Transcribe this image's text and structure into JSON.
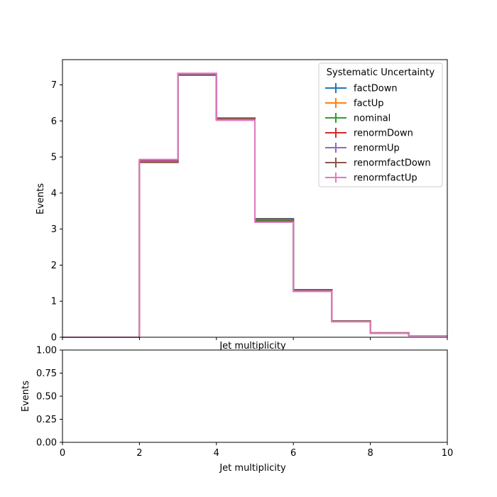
{
  "chart_data": [
    {
      "type": "step",
      "xlabel": "Jet multiplicity",
      "ylabel": "Events",
      "xlim": [
        0,
        10
      ],
      "ylim": [
        0,
        7.7
      ],
      "yticks": [
        "0",
        "1",
        "2",
        "3",
        "4",
        "5",
        "6",
        "7"
      ],
      "legend": {
        "title": "Systematic Uncertainty",
        "placement": "upper right"
      },
      "bin_edges": [
        0,
        1,
        2,
        3,
        4,
        5,
        6,
        7,
        8,
        9,
        10
      ],
      "series": [
        {
          "name": "factDown",
          "color": "#1f77b4",
          "values": [
            0,
            0,
            4.86,
            7.28,
            6.08,
            3.29,
            1.32,
            0.45,
            0.12,
            0.04
          ]
        },
        {
          "name": "factUp",
          "color": "#ff7f0e",
          "values": [
            0,
            0,
            4.92,
            7.31,
            6.02,
            3.2,
            1.28,
            0.43,
            0.11,
            0.04
          ]
        },
        {
          "name": "nominal",
          "color": "#2ca02c",
          "values": [
            0,
            0,
            4.89,
            7.29,
            6.05,
            3.25,
            1.3,
            0.44,
            0.115,
            0.04
          ]
        },
        {
          "name": "renormDown",
          "color": "#d62728",
          "values": [
            0,
            0,
            4.9,
            7.3,
            6.03,
            3.21,
            1.29,
            0.44,
            0.11,
            0.04
          ]
        },
        {
          "name": "renormUp",
          "color": "#9467bd",
          "values": [
            0,
            0,
            4.88,
            7.29,
            6.06,
            3.27,
            1.31,
            0.44,
            0.12,
            0.04
          ]
        },
        {
          "name": "renormfactDown",
          "color": "#8c564b",
          "values": [
            0,
            0,
            4.85,
            7.27,
            6.07,
            3.28,
            1.32,
            0.45,
            0.12,
            0.04
          ]
        },
        {
          "name": "renormfactUp",
          "color": "#e377c2",
          "values": [
            0,
            0,
            4.93,
            7.32,
            6.02,
            3.19,
            1.27,
            0.43,
            0.11,
            0.04
          ]
        }
      ]
    },
    {
      "type": "line",
      "xlabel": "Jet multiplicity",
      "ylabel": "Events",
      "xlim": [
        0,
        10
      ],
      "ylim": [
        0,
        1
      ],
      "xticks": [
        "0",
        "2",
        "4",
        "6",
        "8",
        "10"
      ],
      "yticks": [
        "0.00",
        "0.25",
        "0.50",
        "0.75",
        "1.00"
      ],
      "series": []
    }
  ]
}
